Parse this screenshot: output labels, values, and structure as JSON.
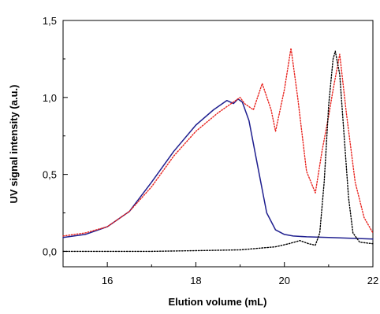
{
  "chart_data": {
    "type": "line",
    "title": "",
    "xlabel": "Elution volume (mL)",
    "ylabel": "UV signal intensity (a.u.)",
    "xlim": [
      15,
      22
    ],
    "ylim": [
      -0.1,
      1.5
    ],
    "x_ticks": [
      16,
      18,
      20,
      22
    ],
    "x_tick_labels": [
      "16",
      "18",
      "20",
      "22"
    ],
    "y_ticks": [
      0.0,
      0.5,
      1.0,
      1.5
    ],
    "y_tick_labels": [
      "0,0",
      "0,5",
      "1,0",
      "1,5"
    ],
    "grid": false,
    "legend": "none",
    "series": [
      {
        "color": "#1f1f8f",
        "style": "solid",
        "x": [
          15.0,
          15.5,
          16.0,
          16.5,
          17.0,
          17.5,
          18.0,
          18.4,
          18.7,
          18.85,
          18.95,
          19.05,
          19.2,
          19.4,
          19.6,
          19.8,
          20.0,
          20.2,
          20.5,
          21.0,
          21.5,
          22.0
        ],
        "values": [
          0.09,
          0.11,
          0.16,
          0.26,
          0.45,
          0.65,
          0.82,
          0.92,
          0.98,
          0.96,
          0.99,
          0.97,
          0.85,
          0.55,
          0.25,
          0.14,
          0.11,
          0.1,
          0.095,
          0.09,
          0.085,
          0.08
        ]
      },
      {
        "color": "#e8231e",
        "style": "dotted",
        "x": [
          15.0,
          15.5,
          16.0,
          16.5,
          17.0,
          17.5,
          18.0,
          18.5,
          18.8,
          19.0,
          19.1,
          19.3,
          19.5,
          19.7,
          19.8,
          20.0,
          20.15,
          20.3,
          20.5,
          20.7,
          20.85,
          21.0,
          21.1,
          21.25,
          21.4,
          21.6,
          21.8,
          22.0
        ],
        "values": [
          0.1,
          0.12,
          0.16,
          0.26,
          0.42,
          0.62,
          0.78,
          0.9,
          0.96,
          1.0,
          0.96,
          0.92,
          1.09,
          0.92,
          0.78,
          1.05,
          1.32,
          1.0,
          0.52,
          0.38,
          0.65,
          0.88,
          1.05,
          1.28,
          0.9,
          0.45,
          0.22,
          0.12
        ]
      },
      {
        "color": "#000000",
        "style": "dotted",
        "x": [
          15.0,
          16.0,
          17.0,
          18.0,
          19.0,
          19.8,
          20.1,
          20.35,
          20.55,
          20.7,
          20.8,
          20.9,
          21.0,
          21.1,
          21.15,
          21.25,
          21.35,
          21.45,
          21.55,
          21.7,
          22.0
        ],
        "values": [
          0.0,
          0.0,
          0.0,
          0.005,
          0.01,
          0.03,
          0.05,
          0.07,
          0.05,
          0.04,
          0.12,
          0.45,
          0.95,
          1.25,
          1.3,
          1.15,
          0.75,
          0.35,
          0.12,
          0.06,
          0.05
        ]
      }
    ]
  }
}
